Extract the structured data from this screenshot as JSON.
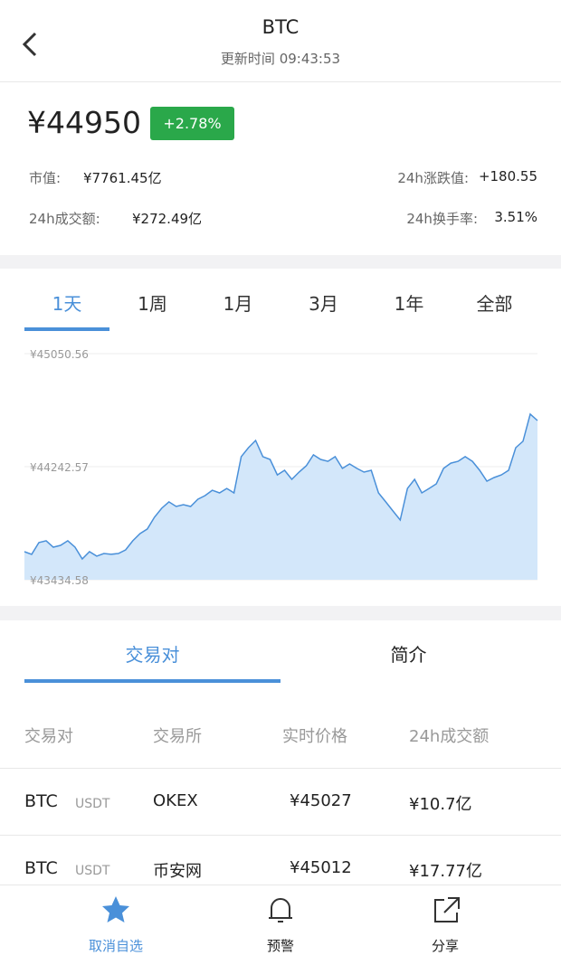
{
  "header": {
    "title": "BTC",
    "subtitle": "更新时间 09:43:53"
  },
  "quote": {
    "price": "¥44950",
    "change": "+2.78%",
    "stats": [
      {
        "label": "市值:",
        "value": "¥7761.45亿"
      },
      {
        "label": "24h涨跌值:",
        "value": "+180.55"
      },
      {
        "label": "24h成交额:",
        "value": "¥272.49亿"
      },
      {
        "label": "24h换手率:",
        "value": "3.51%"
      }
    ]
  },
  "period_tabs": [
    "1天",
    "1周",
    "1月",
    "3月",
    "1年",
    "全部"
  ],
  "price_chart": {
    "type": "area",
    "color": "#4a90d9",
    "ylim": [
      43434.58,
      45050.56
    ],
    "yticks": [
      {
        "value": 43434.58,
        "label": "¥43434.58"
      },
      {
        "value": 44242.57,
        "label": "¥44242.57"
      },
      {
        "value": 45050.56,
        "label": "¥45050.56"
      }
    ],
    "values": [
      43635,
      43616,
      43700,
      43713,
      43667,
      43680,
      43713,
      43667,
      43583,
      43635,
      43603,
      43622,
      43616,
      43622,
      43648,
      43713,
      43764,
      43797,
      43881,
      43945,
      43991,
      43958,
      43971,
      43958,
      44010,
      44036,
      44074,
      44055,
      44087,
      44055,
      44314,
      44378,
      44430,
      44314,
      44294,
      44184,
      44217,
      44152,
      44204,
      44249,
      44327,
      44294,
      44281,
      44314,
      44230,
      44262,
      44230,
      44204,
      44217,
      44055,
      43991,
      43926,
      43861,
      44087,
      44152,
      44055,
      44087,
      44120,
      44230,
      44268,
      44281,
      44314,
      44281,
      44217,
      44139,
      44165,
      44184,
      44217,
      44378,
      44424,
      44618,
      44572
    ]
  },
  "section_tabs": [
    "交易对",
    "简介"
  ],
  "table": {
    "header": [
      "交易对",
      "交易所",
      "实时价格",
      "24h成交额"
    ],
    "rows": [
      [
        "BTC",
        "USDT",
        "OKEX",
        "¥45027",
        "¥10.7亿"
      ],
      [
        "BTC",
        "USDT",
        "币安网",
        "¥45012",
        "¥17.77亿"
      ]
    ]
  },
  "bottom_nav": [
    "取消自选",
    "预警",
    "分享"
  ]
}
